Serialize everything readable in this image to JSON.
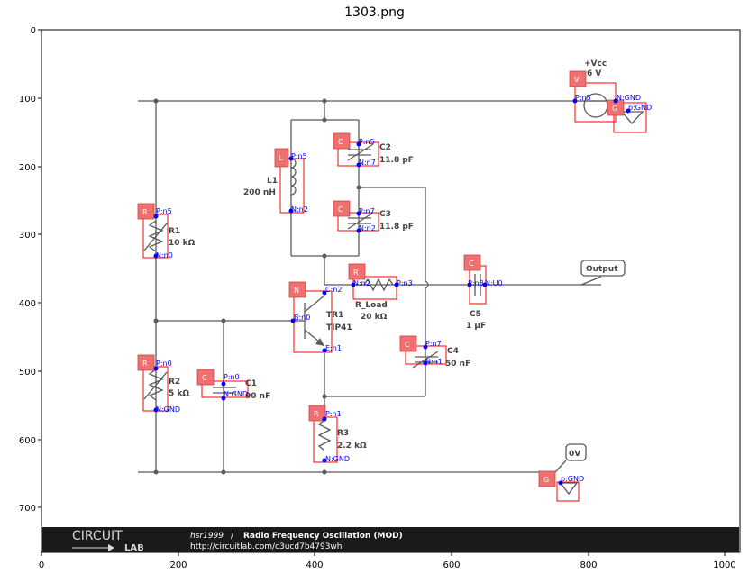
{
  "title": "1303.png",
  "axes": {
    "x_ticks": [
      "0",
      "200",
      "400",
      "600",
      "800",
      "1000"
    ],
    "y_ticks": [
      "0",
      "100",
      "200",
      "300",
      "400",
      "500",
      "600",
      "700"
    ]
  },
  "components": {
    "L1": {
      "name": "L1",
      "value": "200 nH",
      "tag": "L"
    },
    "C2": {
      "name": "C2",
      "value": "11.8 pF",
      "tag": "C"
    },
    "C3": {
      "name": "C3",
      "value": "11.8 pF",
      "tag": "C"
    },
    "R1": {
      "name": "R1",
      "value": "10 kΩ",
      "tag": "R"
    },
    "R2": {
      "name": "R2",
      "value": "5 kΩ",
      "tag": "R"
    },
    "C1": {
      "name": "C1",
      "value": "00 nF",
      "tag": "C"
    },
    "TR1": {
      "name": "TR1",
      "value": "TIP41",
      "tag": "N"
    },
    "R_Load": {
      "name": "R_Load",
      "value": "20 kΩ",
      "tag": "R"
    },
    "C5": {
      "name": "C5",
      "value": "1 µF",
      "tag": "C"
    },
    "C4": {
      "name": "C4",
      "value": "50 nF",
      "tag": "C"
    },
    "R3": {
      "name": "R3",
      "value": "2.2 kΩ",
      "tag": "R"
    },
    "V": {
      "name": "+Vcc",
      "value": "6 V",
      "tag": "V"
    },
    "G_top": {
      "tag": "G"
    },
    "G_bottom": {
      "tag": "G"
    }
  },
  "labels": {
    "output": "Output",
    "zero_v": "0V"
  },
  "pins": {
    "v_pn5": "P:n5",
    "v_ngnd": "N:GND",
    "g1_pgnd": "p:GND",
    "l1_pn5": "P:n5",
    "l1_nn2": "N:n2",
    "c2_pn5": "P:n5",
    "c2_nn7": "N:n7",
    "c3_pn7": "P:n7",
    "c3_nn2": "N:n2",
    "r1_pn5": "P:n5",
    "r1_nn0": "N:n0",
    "tr1_cn2": "C:n2",
    "tr1_bn0": "B:n0",
    "tr1_en1": "E:n1",
    "rl_nn2": "N:n2",
    "rl_pn3": "P:n3",
    "c5_pn3": "P:n3",
    "c5_nu0": "N:U0",
    "c4_pn7": "P:n7",
    "c4_nn1": "N:n1",
    "r2_pn0": "P:n0",
    "r2_ngnd": "N:GND",
    "c1_pn0": "P:n0",
    "c1_ngnd": "N:GND",
    "r3_pn1": "P:n1",
    "r3_ngnd": "N:GND",
    "g2_pgnd": "p:GND"
  },
  "footer": {
    "brand_top": "CIRCUIT",
    "brand_bottom": "LAB",
    "user": "hsr1999",
    "separator": " / ",
    "circuit_title": "Radio Frequency Oscillation (MOD)",
    "url": "http://circuitlab.com/c3ucd7b4793wh"
  }
}
